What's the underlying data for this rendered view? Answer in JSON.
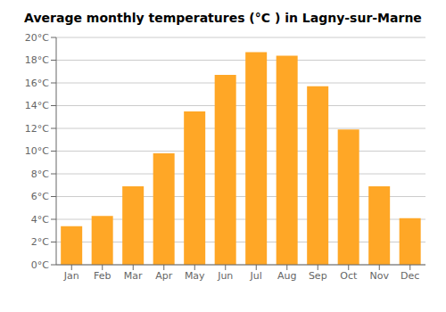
{
  "chart_data": {
    "type": "bar",
    "title": "Average monthly temperatures (°C ) in Lagny-sur-Marne",
    "categories": [
      "Jan",
      "Feb",
      "Mar",
      "Apr",
      "May",
      "Jun",
      "Jul",
      "Aug",
      "Sep",
      "Oct",
      "Nov",
      "Dec"
    ],
    "values": [
      3.4,
      4.3,
      6.9,
      9.8,
      13.5,
      16.7,
      18.7,
      18.4,
      15.7,
      11.9,
      6.9,
      4.1
    ],
    "color": "#FFA726",
    "ylim": [
      0,
      20
    ],
    "yticks": [
      {
        "value": 0,
        "label": "0°C"
      },
      {
        "value": 2,
        "label": "2°C"
      },
      {
        "value": 4,
        "label": "4°C"
      },
      {
        "value": 6,
        "label": "6°C"
      },
      {
        "value": 8,
        "label": "8°C"
      },
      {
        "value": 10,
        "label": "10°C"
      },
      {
        "value": 12,
        "label": "12°C"
      },
      {
        "value": 14,
        "label": "14°C"
      },
      {
        "value": 16,
        "label": "16°C"
      },
      {
        "value": 18,
        "label": "18°C"
      },
      {
        "value": 20,
        "label": "20°C"
      }
    ],
    "grid": true
  }
}
